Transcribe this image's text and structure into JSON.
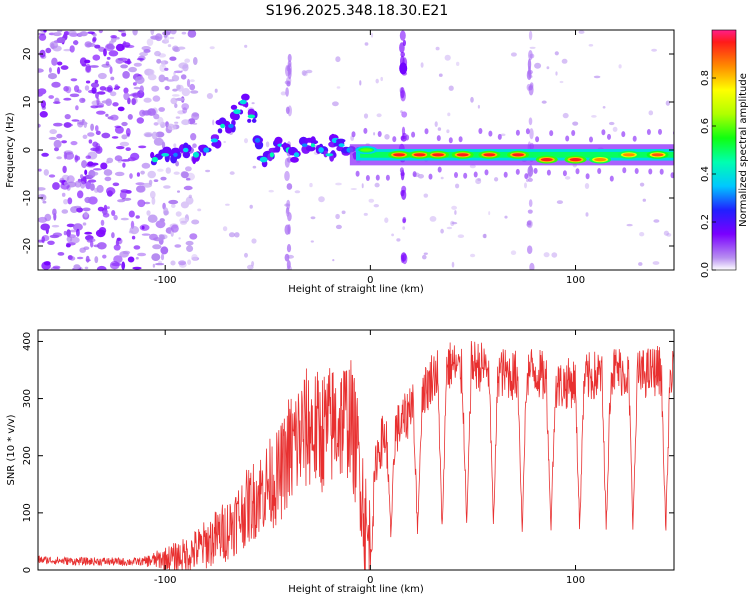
{
  "page": {
    "title": "S196.2025.348.18.30.E21"
  },
  "chart_data": [
    {
      "type": "heatmap",
      "title": "S196.2025.348.18.30.E21",
      "xlabel": "Height of straight line (km)",
      "ylabel": "Frequency (Hz)",
      "xlim": [
        -162,
        148
      ],
      "ylim": [
        -25,
        25
      ],
      "xticks": [
        -100,
        0,
        100
      ],
      "xtick_labels": [
        "-100",
        "0",
        "100"
      ],
      "yticks": [
        -20,
        -10,
        0,
        10,
        20
      ],
      "ytick_labels": [
        "-20",
        "-10",
        "0",
        "10",
        "20"
      ],
      "colorbar": {
        "label": "Normalized spectral amplitude",
        "range": [
          0,
          1
        ],
        "ticks": [
          0.0,
          0.2,
          0.4,
          0.6,
          0.8
        ],
        "tick_labels": [
          "0.0",
          "0.2",
          "0.4",
          "0.6",
          "0.8"
        ]
      },
      "features": {
        "line_frequency_hz": -1,
        "noise_region_km": [
          -162,
          -110
        ],
        "wander_region_km": [
          -110,
          -10
        ],
        "steady_line_region_km": [
          -10,
          148
        ],
        "peak_blobs": [
          {
            "x": -2,
            "y": 0,
            "amp": 0.6
          },
          {
            "x": 14,
            "y": -1,
            "amp": 0.95
          },
          {
            "x": 24,
            "y": -1,
            "amp": 0.95
          },
          {
            "x": 33,
            "y": -1,
            "amp": 0.95
          },
          {
            "x": 45,
            "y": -1,
            "amp": 0.95
          },
          {
            "x": 58,
            "y": -1,
            "amp": 0.95
          },
          {
            "x": 72,
            "y": -1,
            "amp": 0.95
          },
          {
            "x": 86,
            "y": -2,
            "amp": 0.95
          },
          {
            "x": 100,
            "y": -2,
            "amp": 0.95
          },
          {
            "x": 112,
            "y": -2,
            "amp": 0.85
          },
          {
            "x": 126,
            "y": -1,
            "amp": 0.85
          },
          {
            "x": 140,
            "y": -1,
            "amp": 0.9
          }
        ],
        "vertical_streaks_km": [
          -40,
          16,
          78
        ]
      }
    },
    {
      "type": "line",
      "xlabel": "Height of straight line (km)",
      "ylabel": "SNR (10 * v/v)",
      "xlim": [
        -162,
        148
      ],
      "ylim": [
        0,
        420
      ],
      "xticks": [
        -100,
        0,
        100
      ],
      "xtick_labels": [
        "-100",
        "0",
        "100"
      ],
      "yticks": [
        0,
        100,
        200,
        300,
        400
      ],
      "ytick_labels": [
        "0",
        "100",
        "200",
        "300",
        "400"
      ],
      "series": [
        {
          "name": "SNR",
          "color": "#e83030",
          "x": [
            -162,
            -150,
            -140,
            -130,
            -120,
            -110,
            -100,
            -90,
            -80,
            -70,
            -60,
            -50,
            -45,
            -40,
            -35,
            -30,
            -25,
            -20,
            -15,
            -10,
            -5,
            -2,
            0,
            3,
            6,
            10,
            14,
            18,
            20,
            24,
            28,
            30,
            35,
            40,
            45,
            50,
            60,
            70,
            80,
            90,
            100,
            110,
            120,
            130,
            140,
            148
          ],
          "values": [
            18,
            16,
            15,
            15,
            14,
            15,
            20,
            25,
            45,
            70,
            110,
            150,
            160,
            200,
            230,
            250,
            240,
            250,
            260,
            270,
            180,
            60,
            30,
            200,
            230,
            240,
            250,
            270,
            300,
            310,
            320,
            340,
            350,
            360,
            340,
            360,
            350,
            340,
            350,
            320,
            330,
            340,
            350,
            340,
            350,
            340
          ]
        }
      ],
      "dips": [
        {
          "x": 10,
          "value": 60
        },
        {
          "x": 23,
          "value": 70
        },
        {
          "x": 35,
          "value": 65
        },
        {
          "x": 47,
          "value": 75
        },
        {
          "x": 60,
          "value": 80
        },
        {
          "x": 74,
          "value": 70
        },
        {
          "x": 88,
          "value": 75
        },
        {
          "x": 102,
          "value": 75
        },
        {
          "x": 115,
          "value": 75
        },
        {
          "x": 128,
          "value": 80
        },
        {
          "x": 144,
          "value": 70
        }
      ]
    }
  ]
}
